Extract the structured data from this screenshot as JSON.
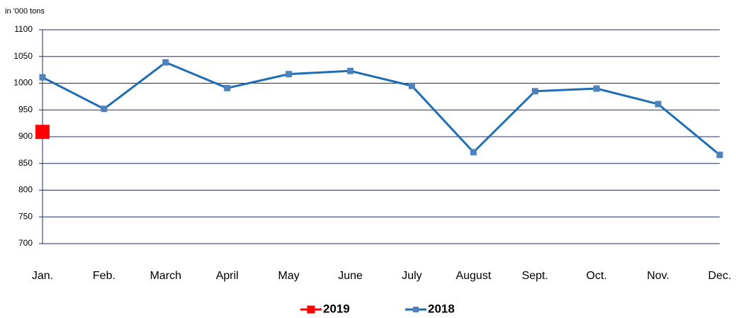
{
  "chart_data": {
    "type": "line",
    "ylabel": "in '000 tons",
    "categories": [
      "Jan.",
      "Feb.",
      "March",
      "April",
      "May",
      "June",
      "July",
      "August",
      "Sept.",
      "Oct.",
      "Nov.",
      "Dec."
    ],
    "series": [
      {
        "name": "2019",
        "color": "#ff0000",
        "values": [
          909,
          null,
          null,
          null,
          null,
          null,
          null,
          null,
          null,
          null,
          null,
          null
        ]
      },
      {
        "name": "2018",
        "color": "#1f6eb5",
        "values": [
          1011,
          952,
          1039,
          991,
          1017,
          1023,
          995,
          871,
          985,
          990,
          961,
          866
        ]
      }
    ],
    "ylim": [
      700,
      1100
    ],
    "yticks": [
      700,
      750,
      800,
      850,
      900,
      950,
      1000,
      1050,
      1100
    ],
    "grid": true,
    "legend": "bottom"
  }
}
